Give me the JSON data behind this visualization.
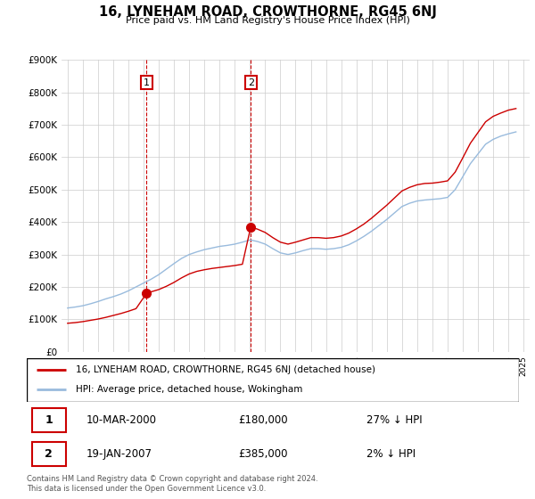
{
  "title": "16, LYNEHAM ROAD, CROWTHORNE, RG45 6NJ",
  "subtitle": "Price paid vs. HM Land Registry's House Price Index (HPI)",
  "sale1_date": "10-MAR-2000",
  "sale1_price": 180000,
  "sale1_hpi": "27% ↓ HPI",
  "sale2_date": "19-JAN-2007",
  "sale2_price": 385000,
  "sale2_hpi": "2% ↓ HPI",
  "legend_line1": "16, LYNEHAM ROAD, CROWTHORNE, RG45 6NJ (detached house)",
  "legend_line2": "HPI: Average price, detached house, Wokingham",
  "footer": "Contains HM Land Registry data © Crown copyright and database right 2024.\nThis data is licensed under the Open Government Licence v3.0.",
  "line_color_red": "#cc0000",
  "line_color_blue": "#99bbdd",
  "background_color": "#ffffff",
  "grid_color": "#cccccc",
  "ylim": [
    0,
    900000
  ],
  "yticks": [
    0,
    100000,
    200000,
    300000,
    400000,
    500000,
    600000,
    700000,
    800000,
    900000
  ],
  "ytick_labels": [
    "£0",
    "£100K",
    "£200K",
    "£300K",
    "£400K",
    "£500K",
    "£600K",
    "£700K",
    "£800K",
    "£900K"
  ],
  "hpi_x": [
    1995.0,
    1995.5,
    1996.0,
    1996.5,
    1997.0,
    1997.5,
    1998.0,
    1998.5,
    1999.0,
    1999.5,
    2000.0,
    2000.5,
    2001.0,
    2001.5,
    2002.0,
    2002.5,
    2003.0,
    2003.5,
    2004.0,
    2004.5,
    2005.0,
    2005.5,
    2006.0,
    2006.5,
    2007.0,
    2007.5,
    2008.0,
    2008.5,
    2009.0,
    2009.5,
    2010.0,
    2010.5,
    2011.0,
    2011.5,
    2012.0,
    2012.5,
    2013.0,
    2013.5,
    2014.0,
    2014.5,
    2015.0,
    2015.5,
    2016.0,
    2016.5,
    2017.0,
    2017.5,
    2018.0,
    2018.5,
    2019.0,
    2019.5,
    2020.0,
    2020.5,
    2021.0,
    2021.5,
    2022.0,
    2022.5,
    2023.0,
    2023.5,
    2024.0,
    2024.5
  ],
  "hpi_y": [
    135000,
    138000,
    142000,
    148000,
    155000,
    163000,
    170000,
    178000,
    188000,
    200000,
    212000,
    224000,
    238000,
    255000,
    272000,
    288000,
    300000,
    308000,
    315000,
    320000,
    325000,
    328000,
    332000,
    338000,
    345000,
    340000,
    332000,
    318000,
    305000,
    300000,
    305000,
    312000,
    318000,
    318000,
    316000,
    318000,
    322000,
    330000,
    342000,
    356000,
    372000,
    390000,
    408000,
    428000,
    448000,
    458000,
    465000,
    468000,
    470000,
    472000,
    476000,
    500000,
    540000,
    580000,
    610000,
    640000,
    655000,
    665000,
    672000,
    678000
  ],
  "red_x": [
    1995.0,
    1995.5,
    1996.0,
    1996.5,
    1997.0,
    1997.5,
    1998.0,
    1998.5,
    1999.0,
    1999.5,
    2000.19,
    2000.5,
    2001.0,
    2001.5,
    2002.0,
    2002.5,
    2003.0,
    2003.5,
    2004.0,
    2004.5,
    2005.0,
    2005.5,
    2006.0,
    2006.5,
    2007.05,
    2007.5,
    2008.0,
    2008.5,
    2009.0,
    2009.5,
    2010.0,
    2010.5,
    2011.0,
    2011.5,
    2012.0,
    2012.5,
    2013.0,
    2013.5,
    2014.0,
    2014.5,
    2015.0,
    2015.5,
    2016.0,
    2016.5,
    2017.0,
    2017.5,
    2018.0,
    2018.5,
    2019.0,
    2019.5,
    2020.0,
    2020.5,
    2021.0,
    2021.5,
    2022.0,
    2022.5,
    2023.0,
    2023.5,
    2024.0,
    2024.5
  ],
  "red_y": [
    88000,
    90000,
    93000,
    97000,
    101000,
    106000,
    112000,
    118000,
    125000,
    133000,
    180000,
    185000,
    192000,
    202000,
    214000,
    228000,
    240000,
    248000,
    253000,
    257000,
    260000,
    263000,
    266000,
    270000,
    385000,
    378000,
    368000,
    352000,
    338000,
    332000,
    338000,
    345000,
    352000,
    352000,
    350000,
    352000,
    357000,
    366000,
    379000,
    394000,
    412000,
    432000,
    452000,
    474000,
    496000,
    507000,
    515000,
    519000,
    520000,
    523000,
    527000,
    554000,
    598000,
    643000,
    676000,
    709000,
    726000,
    736000,
    745000,
    750000
  ],
  "sale1_x": 2000.19,
  "sale2_x": 2007.05,
  "vline_color": "#cc0000",
  "marker_color": "#cc0000",
  "marker_size": 7,
  "box_edgecolor": "#cc0000"
}
